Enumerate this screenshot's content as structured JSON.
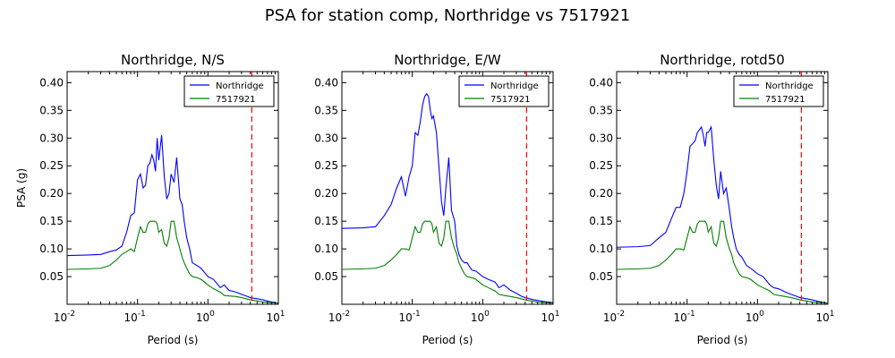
{
  "figure": {
    "suptitle": "PSA for station comp, Northridge vs 7517921",
    "colors": {
      "s1": "#0000ff",
      "s2": "#008000",
      "marker": "#ff0000"
    }
  },
  "chart_data": [
    {
      "type": "line",
      "title": "Northridge, N/S",
      "xlabel": "Period (s)",
      "ylabel": "PSA (g)",
      "xscale": "log",
      "xlim": [
        0.01,
        10
      ],
      "ylim": [
        0.0,
        0.42
      ],
      "yticks": [
        "0.05",
        "0.10",
        "0.15",
        "0.20",
        "0.25",
        "0.30",
        "0.35",
        "0.40"
      ],
      "xticks": [
        {
          "base": "10",
          "exp": "-2"
        },
        {
          "base": "10",
          "exp": "-1"
        },
        {
          "base": "10",
          "exp": "0"
        },
        {
          "base": "10",
          "exp": "1"
        }
      ],
      "legend": "top-right",
      "vline": 4.2,
      "series": [
        {
          "name": "Northridge",
          "x": [
            0.01,
            0.02,
            0.03,
            0.04,
            0.05,
            0.06,
            0.07,
            0.08,
            0.09,
            0.1,
            0.11,
            0.12,
            0.13,
            0.14,
            0.15,
            0.16,
            0.17,
            0.18,
            0.19,
            0.2,
            0.22,
            0.24,
            0.26,
            0.28,
            0.3,
            0.33,
            0.36,
            0.4,
            0.43,
            0.46,
            0.5,
            0.55,
            0.6,
            0.7,
            0.8,
            1.0,
            1.2,
            1.5,
            1.7,
            2.0,
            2.5,
            3.0,
            3.5,
            4.0,
            5.0,
            6.0,
            7.5,
            10
          ],
          "y": [
            0.088,
            0.089,
            0.09,
            0.095,
            0.098,
            0.105,
            0.13,
            0.16,
            0.165,
            0.225,
            0.235,
            0.21,
            0.215,
            0.25,
            0.255,
            0.27,
            0.26,
            0.24,
            0.3,
            0.26,
            0.305,
            0.23,
            0.19,
            0.2,
            0.235,
            0.22,
            0.265,
            0.19,
            0.18,
            0.15,
            0.12,
            0.1,
            0.075,
            0.07,
            0.065,
            0.05,
            0.045,
            0.03,
            0.035,
            0.025,
            0.022,
            0.018,
            0.015,
            0.012,
            0.01,
            0.008,
            0.005,
            0.002
          ]
        },
        {
          "name": "7517921",
          "x": [
            0.01,
            0.02,
            0.03,
            0.04,
            0.05,
            0.06,
            0.07,
            0.08,
            0.09,
            0.1,
            0.11,
            0.12,
            0.13,
            0.14,
            0.15,
            0.16,
            0.17,
            0.18,
            0.19,
            0.2,
            0.22,
            0.24,
            0.26,
            0.28,
            0.3,
            0.33,
            0.36,
            0.4,
            0.43,
            0.46,
            0.5,
            0.55,
            0.6,
            0.7,
            0.8,
            1.0,
            1.2,
            1.5,
            1.7,
            2.0,
            2.5,
            3.0,
            3.5,
            4.0,
            5.0,
            6.0,
            7.5,
            10
          ],
          "y": [
            0.063,
            0.064,
            0.065,
            0.07,
            0.08,
            0.09,
            0.095,
            0.1,
            0.095,
            0.12,
            0.14,
            0.13,
            0.13,
            0.145,
            0.15,
            0.15,
            0.15,
            0.15,
            0.145,
            0.13,
            0.135,
            0.11,
            0.105,
            0.12,
            0.15,
            0.15,
            0.12,
            0.1,
            0.085,
            0.075,
            0.065,
            0.055,
            0.05,
            0.048,
            0.045,
            0.035,
            0.028,
            0.022,
            0.016,
            0.015,
            0.014,
            0.012,
            0.01,
            0.008,
            0.006,
            0.004,
            0.003,
            0.002
          ]
        }
      ]
    },
    {
      "type": "line",
      "title": "Northridge, E/W",
      "xlabel": "Period (s)",
      "ylabel": "",
      "xscale": "log",
      "xlim": [
        0.01,
        10
      ],
      "ylim": [
        0.0,
        0.42
      ],
      "yticks": [
        "0.05",
        "0.10",
        "0.15",
        "0.20",
        "0.25",
        "0.30",
        "0.35",
        "0.40"
      ],
      "xticks": [
        {
          "base": "10",
          "exp": "-2"
        },
        {
          "base": "10",
          "exp": "-1"
        },
        {
          "base": "10",
          "exp": "0"
        },
        {
          "base": "10",
          "exp": "1"
        }
      ],
      "legend": "top-right",
      "vline": 4.2,
      "series": [
        {
          "name": "Northridge",
          "x": [
            0.01,
            0.02,
            0.03,
            0.04,
            0.05,
            0.06,
            0.07,
            0.08,
            0.09,
            0.1,
            0.11,
            0.12,
            0.13,
            0.14,
            0.15,
            0.16,
            0.17,
            0.18,
            0.19,
            0.2,
            0.22,
            0.24,
            0.26,
            0.28,
            0.3,
            0.33,
            0.36,
            0.4,
            0.43,
            0.46,
            0.5,
            0.55,
            0.6,
            0.7,
            0.8,
            1.0,
            1.2,
            1.5,
            1.7,
            2.0,
            2.5,
            3.0,
            3.5,
            4.0,
            5.0,
            6.0,
            7.5,
            10
          ],
          "y": [
            0.137,
            0.138,
            0.14,
            0.16,
            0.18,
            0.21,
            0.23,
            0.195,
            0.23,
            0.25,
            0.31,
            0.305,
            0.33,
            0.36,
            0.375,
            0.38,
            0.375,
            0.35,
            0.335,
            0.34,
            0.31,
            0.245,
            0.185,
            0.16,
            0.21,
            0.265,
            0.17,
            0.15,
            0.105,
            0.09,
            0.08,
            0.075,
            0.075,
            0.062,
            0.06,
            0.05,
            0.045,
            0.04,
            0.03,
            0.035,
            0.025,
            0.02,
            0.015,
            0.012,
            0.009,
            0.007,
            0.005,
            0.003
          ]
        },
        {
          "name": "7517921",
          "x": [
            0.01,
            0.02,
            0.03,
            0.04,
            0.05,
            0.06,
            0.07,
            0.08,
            0.09,
            0.1,
            0.11,
            0.12,
            0.13,
            0.14,
            0.15,
            0.16,
            0.17,
            0.18,
            0.19,
            0.2,
            0.22,
            0.24,
            0.26,
            0.28,
            0.3,
            0.33,
            0.36,
            0.4,
            0.43,
            0.46,
            0.5,
            0.55,
            0.6,
            0.7,
            0.8,
            1.0,
            1.2,
            1.5,
            1.7,
            2.0,
            2.5,
            3.0,
            3.5,
            4.0,
            5.0,
            6.0,
            7.5,
            10
          ],
          "y": [
            0.063,
            0.064,
            0.065,
            0.07,
            0.08,
            0.09,
            0.1,
            0.1,
            0.098,
            0.12,
            0.14,
            0.13,
            0.13,
            0.145,
            0.15,
            0.15,
            0.15,
            0.15,
            0.145,
            0.13,
            0.14,
            0.11,
            0.105,
            0.12,
            0.15,
            0.15,
            0.12,
            0.1,
            0.09,
            0.075,
            0.065,
            0.055,
            0.05,
            0.048,
            0.045,
            0.035,
            0.03,
            0.024,
            0.018,
            0.016,
            0.014,
            0.012,
            0.01,
            0.008,
            0.006,
            0.004,
            0.003,
            0.002
          ]
        }
      ]
    },
    {
      "type": "line",
      "title": "Northridge, rotd50",
      "xlabel": "Period (s)",
      "ylabel": "",
      "xscale": "log",
      "xlim": [
        0.01,
        10
      ],
      "ylim": [
        0.0,
        0.42
      ],
      "yticks": [
        "0.05",
        "0.10",
        "0.15",
        "0.20",
        "0.25",
        "0.30",
        "0.35",
        "0.40"
      ],
      "xticks": [
        {
          "base": "10",
          "exp": "-2"
        },
        {
          "base": "10",
          "exp": "-1"
        },
        {
          "base": "10",
          "exp": "0"
        },
        {
          "base": "10",
          "exp": "1"
        }
      ],
      "legend": "top-right",
      "vline": 4.2,
      "series": [
        {
          "name": "Northridge",
          "x": [
            0.01,
            0.02,
            0.03,
            0.04,
            0.05,
            0.06,
            0.07,
            0.08,
            0.09,
            0.1,
            0.11,
            0.12,
            0.13,
            0.14,
            0.15,
            0.16,
            0.17,
            0.18,
            0.19,
            0.2,
            0.22,
            0.24,
            0.26,
            0.28,
            0.3,
            0.33,
            0.36,
            0.4,
            0.43,
            0.46,
            0.5,
            0.55,
            0.6,
            0.7,
            0.8,
            1.0,
            1.2,
            1.5,
            1.7,
            2.0,
            2.5,
            3.0,
            3.5,
            4.0,
            5.0,
            6.0,
            7.5,
            10
          ],
          "y": [
            0.103,
            0.104,
            0.106,
            0.12,
            0.13,
            0.155,
            0.175,
            0.175,
            0.2,
            0.24,
            0.285,
            0.29,
            0.295,
            0.31,
            0.315,
            0.32,
            0.305,
            0.285,
            0.31,
            0.31,
            0.32,
            0.26,
            0.215,
            0.19,
            0.24,
            0.2,
            0.21,
            0.17,
            0.14,
            0.12,
            0.1,
            0.09,
            0.085,
            0.07,
            0.065,
            0.055,
            0.05,
            0.035,
            0.03,
            0.028,
            0.022,
            0.018,
            0.015,
            0.012,
            0.01,
            0.008,
            0.005,
            0.002
          ]
        },
        {
          "name": "7517921",
          "x": [
            0.01,
            0.02,
            0.03,
            0.04,
            0.05,
            0.06,
            0.07,
            0.08,
            0.09,
            0.1,
            0.11,
            0.12,
            0.13,
            0.14,
            0.15,
            0.16,
            0.17,
            0.18,
            0.19,
            0.2,
            0.22,
            0.24,
            0.26,
            0.28,
            0.3,
            0.33,
            0.36,
            0.4,
            0.43,
            0.46,
            0.5,
            0.55,
            0.6,
            0.7,
            0.8,
            1.0,
            1.2,
            1.5,
            1.7,
            2.0,
            2.5,
            3.0,
            3.5,
            4.0,
            5.0,
            6.0,
            7.5,
            10
          ],
          "y": [
            0.063,
            0.064,
            0.065,
            0.07,
            0.08,
            0.09,
            0.1,
            0.1,
            0.098,
            0.12,
            0.14,
            0.13,
            0.13,
            0.145,
            0.15,
            0.15,
            0.15,
            0.15,
            0.145,
            0.13,
            0.14,
            0.11,
            0.105,
            0.12,
            0.15,
            0.15,
            0.12,
            0.1,
            0.09,
            0.075,
            0.065,
            0.055,
            0.05,
            0.048,
            0.045,
            0.035,
            0.03,
            0.024,
            0.018,
            0.016,
            0.014,
            0.012,
            0.01,
            0.008,
            0.006,
            0.004,
            0.003,
            0.002
          ]
        }
      ]
    }
  ]
}
